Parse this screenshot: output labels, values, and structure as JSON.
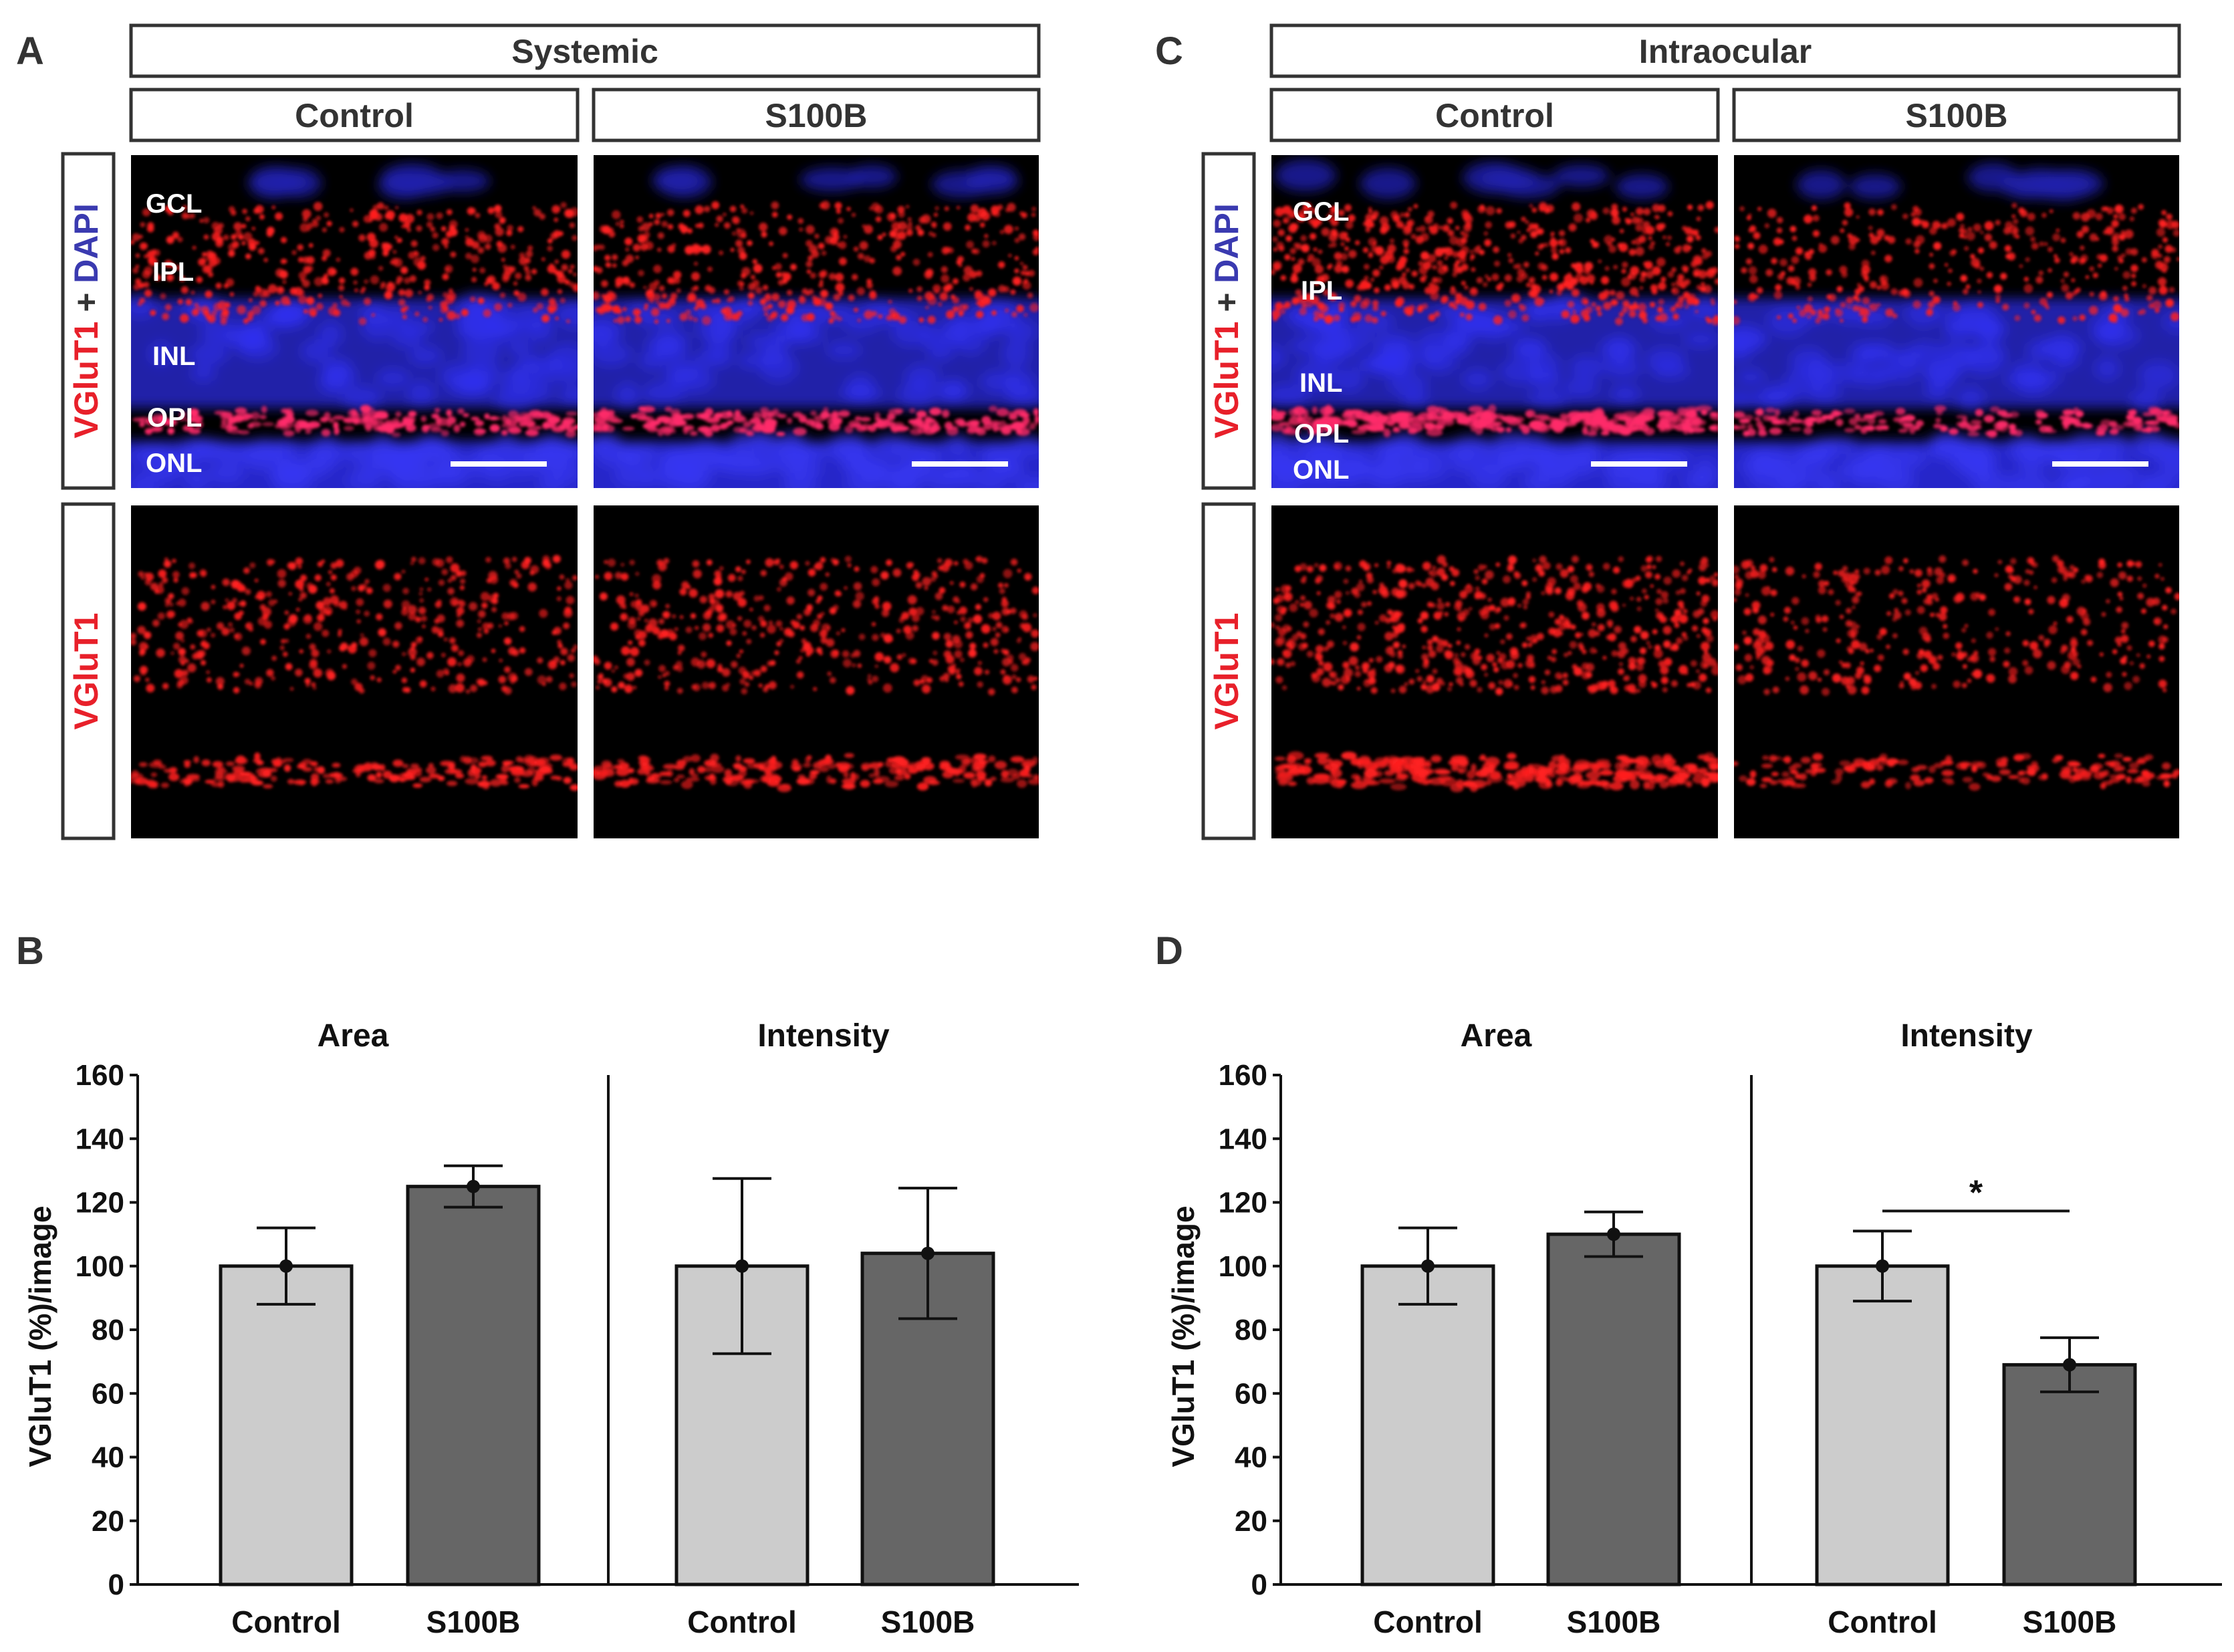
{
  "colors": {
    "dapi_blue": "#2a2adf",
    "vglut_red": "#ff2020",
    "control_fill": "#cccccc",
    "s100b_fill": "#666666",
    "axis": "#111111"
  },
  "panels": {
    "A": {
      "letter": "A",
      "group": "Systemic",
      "conditions": [
        "Control",
        "S100B"
      ],
      "row_labels": {
        "merged_red": "VGluT1",
        "merged_plus": " + ",
        "merged_blue": "DAPI",
        "single": "VGluT1"
      },
      "layers": [
        "GCL",
        "IPL",
        "INL",
        "OPL",
        "ONL"
      ]
    },
    "C": {
      "letter": "C",
      "group": "Intraocular",
      "conditions": [
        "Control",
        "S100B"
      ],
      "row_labels": {
        "merged_red": "VGluT1",
        "merged_plus": " + ",
        "merged_blue": "DAPI",
        "single": "VGluT1"
      },
      "layers": [
        "GCL",
        "IPL",
        "INL",
        "OPL",
        "ONL"
      ]
    }
  },
  "chart_data": [
    {
      "panel": "B",
      "type": "bar",
      "ylabel": "VGluT1 (%)/image",
      "ylim": [
        0,
        160
      ],
      "yticks": [
        0,
        20,
        40,
        60,
        80,
        100,
        120,
        140,
        160
      ],
      "subplots": [
        {
          "title": "Area",
          "categories": [
            "Control",
            "S100B"
          ],
          "values": [
            100,
            125
          ],
          "errors": [
            12,
            6.5
          ],
          "significance": ""
        },
        {
          "title": "Intensity",
          "categories": [
            "Control",
            "S100B"
          ],
          "values": [
            100,
            104
          ],
          "errors": [
            27.5,
            20.5
          ],
          "significance": ""
        }
      ]
    },
    {
      "panel": "D",
      "type": "bar",
      "ylabel": "VGluT1 (%)/image",
      "ylim": [
        0,
        160
      ],
      "yticks": [
        0,
        20,
        40,
        60,
        80,
        100,
        120,
        140,
        160
      ],
      "subplots": [
        {
          "title": "Area",
          "categories": [
            "Control",
            "S100B"
          ],
          "values": [
            100,
            110
          ],
          "errors": [
            12,
            7
          ],
          "significance": ""
        },
        {
          "title": "Intensity",
          "categories": [
            "Control",
            "S100B"
          ],
          "values": [
            100,
            69
          ],
          "errors": [
            11,
            8.5
          ],
          "significance": "*"
        }
      ]
    }
  ]
}
